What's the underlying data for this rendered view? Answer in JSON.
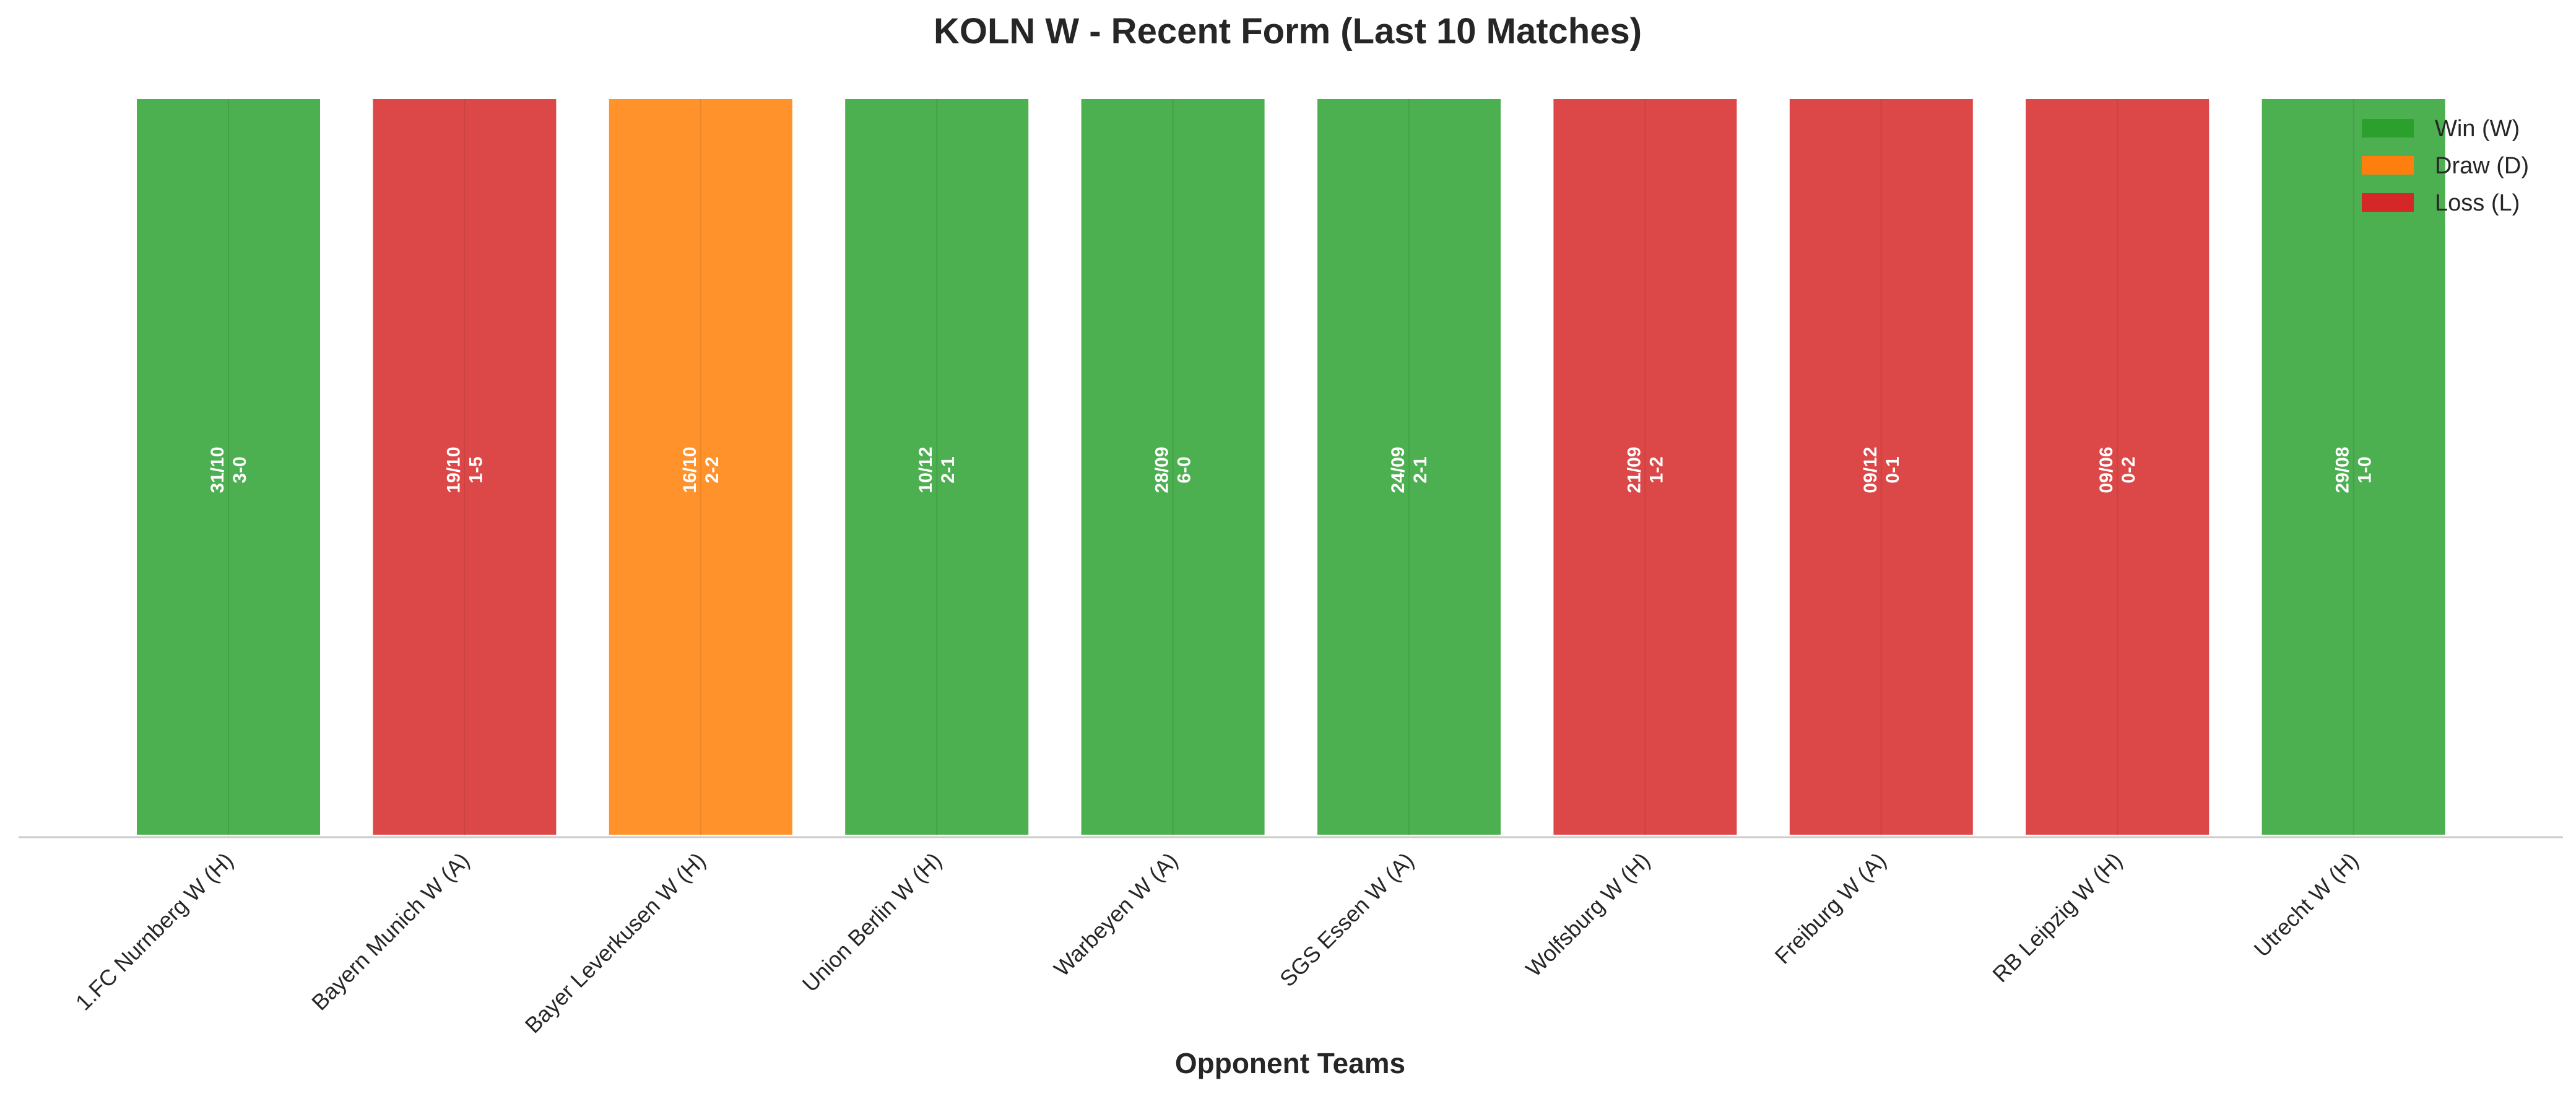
{
  "chart_data": {
    "type": "bar",
    "title": "KOLN W - Recent Form (Last 10 Matches)",
    "xlabel": "Opponent Teams",
    "ylabel": "",
    "categories": [
      "1.FC Nurnberg W (H)",
      "Bayern Munich W (A)",
      "Bayer Leverkusen W (H)",
      "Union Berlin W (H)",
      "Warbeyen W (A)",
      "SGS Essen W (A)",
      "Wolfsburg W (H)",
      "Freiburg W (A)",
      "RB Leipzig W (H)",
      "Utrecht W (H)"
    ],
    "values": [
      1,
      1,
      1,
      1,
      1,
      1,
      1,
      1,
      1,
      1
    ],
    "results": [
      "W",
      "L",
      "D",
      "W",
      "W",
      "W",
      "L",
      "L",
      "L",
      "W"
    ],
    "dates": [
      "31/10",
      "19/10",
      "16/10",
      "10/12",
      "28/09",
      "24/09",
      "21/09",
      "09/12",
      "09/06",
      "29/08"
    ],
    "scores": [
      "3-0",
      "1-5",
      "2-2",
      "2-1",
      "6-0",
      "2-1",
      "1-2",
      "0-1",
      "0-2",
      "1-0"
    ],
    "ylim": [
      0,
      1
    ],
    "grid": false,
    "legend": {
      "placement": "top-right",
      "entries": [
        {
          "key": "W",
          "label": "Win (W)",
          "color": "#2ca02c"
        },
        {
          "key": "D",
          "label": "Draw (D)",
          "color": "#ff7f0e"
        },
        {
          "key": "L",
          "label": "Loss (L)",
          "color": "#d62728"
        }
      ]
    },
    "colors": {
      "W": "#4caf50",
      "D": "#ff922b",
      "L": "#dc4848",
      "axis": "#cccccc"
    }
  }
}
